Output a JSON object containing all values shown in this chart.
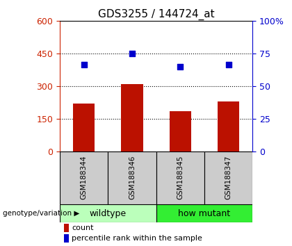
{
  "title": "GDS3255 / 144724_at",
  "samples": [
    "GSM188344",
    "GSM188346",
    "GSM188345",
    "GSM188347"
  ],
  "bar_values": [
    220,
    310,
    185,
    230
  ],
  "bar_color": "#bb1100",
  "percentile_values": [
    400,
    450,
    388,
    400
  ],
  "percentile_color": "#0000cc",
  "left_ylim": [
    0,
    600
  ],
  "left_yticks": [
    0,
    150,
    300,
    450,
    600
  ],
  "right_ylim": [
    0,
    100
  ],
  "right_yticks": [
    0,
    25,
    50,
    75,
    100
  ],
  "right_yticklabels": [
    "0",
    "25",
    "50",
    "75",
    "100%"
  ],
  "groups": [
    {
      "label": "wildtype",
      "indices": [
        0,
        1
      ],
      "color": "#bbffbb"
    },
    {
      "label": "how mutant",
      "indices": [
        2,
        3
      ],
      "color": "#33ee33"
    }
  ],
  "genotype_label": "genotype/variation",
  "legend_count_label": "count",
  "legend_percentile_label": "percentile rank within the sample",
  "left_axis_color": "#cc2200",
  "right_axis_color": "#0000cc",
  "sample_box_color": "#cccccc",
  "bar_width": 0.45
}
